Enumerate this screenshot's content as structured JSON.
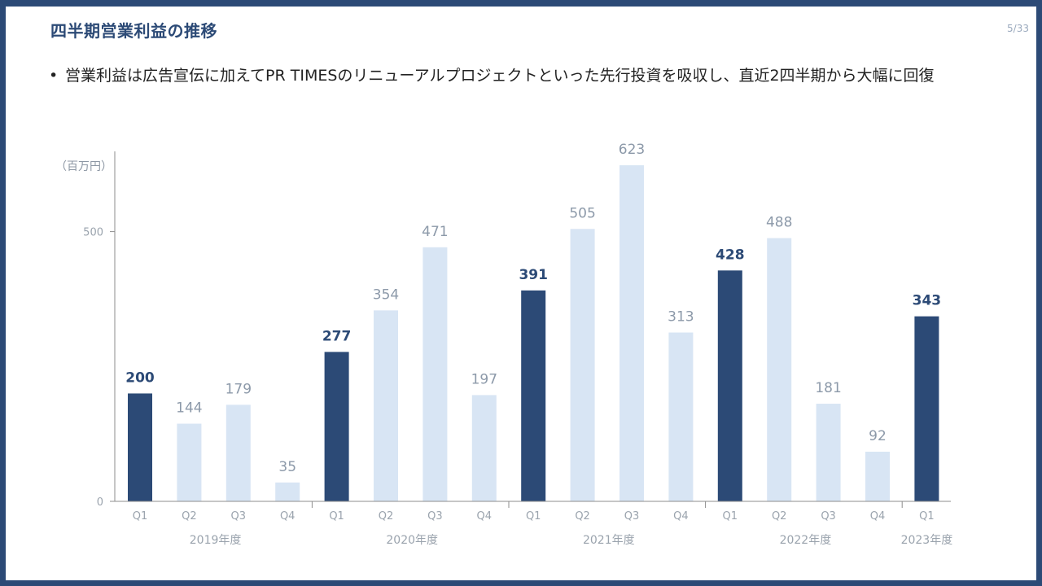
{
  "header": {
    "title": "四半期営業利益の推移",
    "page": "5/33"
  },
  "bullet": {
    "marker": "•",
    "text": "営業利益は広告宣伝に加えてPR TIMESのリニューアルプロジェクトといった先行投資を吸収し、直近2四半期から大幅に回復"
  },
  "chart_data": {
    "type": "bar",
    "unit_label": "（百万円）",
    "categories": [
      "Q1",
      "Q2",
      "Q3",
      "Q4",
      "Q1",
      "Q2",
      "Q3",
      "Q4",
      "Q1",
      "Q2",
      "Q3",
      "Q4",
      "Q1",
      "Q2",
      "Q3",
      "Q4",
      "Q1"
    ],
    "groups": [
      {
        "label": "2019年度",
        "count": 4
      },
      {
        "label": "2020年度",
        "count": 4
      },
      {
        "label": "2021年度",
        "count": 4
      },
      {
        "label": "2022年度",
        "count": 4
      },
      {
        "label": "2023年度",
        "count": 1
      }
    ],
    "values": [
      200,
      144,
      179,
      35,
      277,
      354,
      471,
      197,
      391,
      505,
      623,
      313,
      428,
      488,
      181,
      92,
      343
    ],
    "highlight": [
      true,
      false,
      false,
      false,
      true,
      false,
      false,
      false,
      true,
      false,
      false,
      false,
      true,
      false,
      false,
      false,
      true
    ],
    "yticks": [
      0,
      500
    ],
    "ylim": [
      0,
      650
    ],
    "colors": {
      "highlight": "#2c4a76",
      "normal": "#d8e5f4",
      "highlight_label": "#2c4a76",
      "normal_label": "#8c99a9"
    }
  }
}
